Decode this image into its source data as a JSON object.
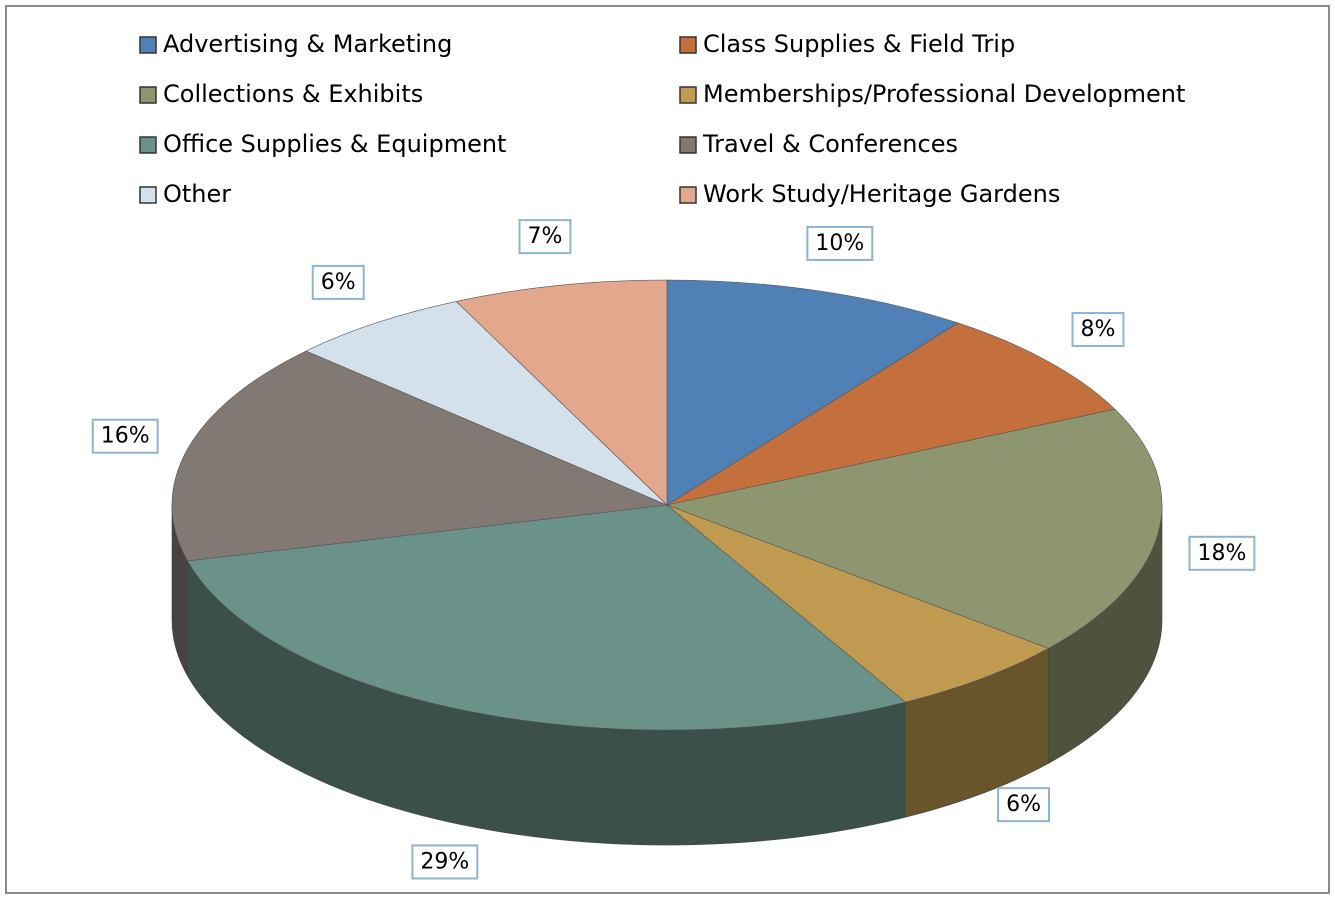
{
  "chart_data": {
    "type": "pie",
    "categories": [
      "Advertising & Marketing",
      "Class Supplies & Field Trip",
      "Collections & Exhibits",
      "Memberships/Professional Development",
      "Office Supplies & Equipment",
      "Travel & Conferences",
      "Other",
      "Work Study/Heritage Gardens"
    ],
    "values": [
      10,
      8,
      18,
      6,
      29,
      16,
      6,
      7
    ],
    "value_labels": [
      "10%",
      "8%",
      "18%",
      "6%",
      "29%",
      "16%",
      "6%",
      "7%"
    ],
    "colors": [
      "#4f81b7",
      "#c3703c",
      "#8e9670",
      "#bf9a50",
      "#6b9288",
      "#827874",
      "#d5e1ea",
      "#e2a78c"
    ],
    "legend": "top"
  }
}
